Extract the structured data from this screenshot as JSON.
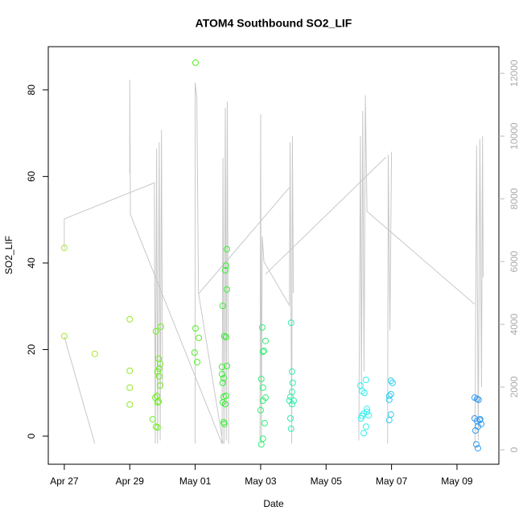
{
  "chart_data": {
    "type": "scatter",
    "title": "ATOM4 Southbound SO2_LIF",
    "xlabel": "Date",
    "ylabel": "SO2_LIF",
    "xlim": [
      -0.49,
      13.28
    ],
    "ylim": [
      -6.5,
      90
    ],
    "y2lim": [
      -460,
      12850
    ],
    "xticks": [
      {
        "value": 0,
        "label": "Apr 27"
      },
      {
        "value": 2,
        "label": "Apr 29"
      },
      {
        "value": 4,
        "label": "May 01"
      },
      {
        "value": 6,
        "label": "May 03"
      },
      {
        "value": 8,
        "label": "May 05"
      },
      {
        "value": 10,
        "label": "May 07"
      },
      {
        "value": 12,
        "label": "May 09"
      }
    ],
    "yticks": [
      0,
      20,
      40,
      60,
      80
    ],
    "y2ticks": [
      0,
      2000,
      4000,
      6000,
      8000,
      10000,
      12000
    ],
    "series": [
      {
        "type": "line",
        "axis": "y2",
        "color": "#c8c8c8",
        "x": [
          0,
          0.93,
          null,
          0,
          0,
          2.75,
          2.78,
          2.82,
          2.85,
          2.9,
          2.93,
          2.97,
          3.0,
          null,
          2.0,
          2.0,
          2.02,
          4.82,
          null,
          4.0,
          4.0,
          4.05,
          4.1,
          4.85,
          null,
          4.1,
          6.88,
          null,
          4.82,
          4.85,
          4.88,
          4.92,
          4.95,
          4.98,
          5.02,
          null,
          5.98,
          6.0,
          6.02,
          6.05,
          6.1,
          6.88,
          6.9,
          6.95,
          6.97,
          7.0,
          null,
          6.15,
          9.83,
          null,
          9.0,
          9.05,
          9.08,
          9.12,
          9.16,
          9.2,
          9.25,
          12.54,
          null,
          9.88,
          9.9,
          9.95,
          10.0,
          null,
          12.55,
          12.6,
          12.65,
          12.7,
          12.75,
          12.78,
          12.8
        ],
        "values": [
          3600,
          200,
          null,
          6380,
          7360,
          8510,
          200,
          9600,
          200,
          9800,
          300,
          10200,
          2000,
          null,
          8800,
          11800,
          7500,
          200,
          null,
          200,
          11700,
          11200,
          5000,
          200,
          null,
          4970,
          8360,
          null,
          200,
          9300,
          200,
          10900,
          300,
          11100,
          200,
          null,
          300,
          10700,
          200,
          6800,
          6000,
          4600,
          9800,
          200,
          10000,
          5000,
          null,
          5600,
          9330,
          null,
          300,
          10000,
          2000,
          10800,
          2500,
          11300,
          7600,
          4640,
          null,
          200,
          9400,
          3800,
          9500,
          null,
          200,
          9700,
          300,
          9900,
          2000,
          10000,
          5500
        ]
      },
      {
        "color": "#a8e830",
        "x": [
          0,
          0,
          0.93
        ],
        "values": [
          43.5,
          23.1,
          19.0
        ]
      },
      {
        "color": "#90ea28",
        "x": [
          2.0,
          2.0,
          2.0,
          2.0
        ],
        "values": [
          27.0,
          15.1,
          11.2,
          7.3
        ]
      },
      {
        "color": "#70ec22",
        "x": [
          2.7,
          2.8,
          2.85,
          2.8,
          2.83,
          2.78,
          2.85,
          2.9,
          2.85,
          2.9,
          2.93,
          2.95,
          2.88,
          2.93,
          2.88
        ],
        "values": [
          3.9,
          2.2,
          2.0,
          24.2,
          9.3,
          8.9,
          7.8,
          15.6,
          14.9,
          13.8,
          11.7,
          25.3,
          8.0,
          16.7,
          17.9
        ]
      },
      {
        "color": "#50ee22",
        "x": [
          4.01,
          4.01,
          3.98,
          4.06,
          4.11
        ],
        "values": [
          86.3,
          24.9,
          19.3,
          17.1,
          22.7
        ]
      },
      {
        "color": "#38ee30",
        "x": [
          4.84,
          4.92,
          4.94,
          4.97,
          4.97,
          4.89,
          4.94,
          4.82,
          4.82,
          4.87,
          4.84,
          4.97,
          4.87,
          4.94,
          4.84,
          4.92,
          4.87,
          4.89
        ],
        "values": [
          30.1,
          38.3,
          39.4,
          43.2,
          33.9,
          23.1,
          22.9,
          16.0,
          14.3,
          13.4,
          12.3,
          16.2,
          9.1,
          9.3,
          7.8,
          7.4,
          3.2,
          2.8
        ]
      },
      {
        "color": "#33ee77",
        "x": [
          6.05,
          6.07,
          6.15,
          6.02,
          6.07,
          6.15,
          6.0,
          6.07,
          6.12,
          6.07,
          6.02,
          6.1
        ],
        "values": [
          25.1,
          19.5,
          22.0,
          13.2,
          8.2,
          8.9,
          6.0,
          11.2,
          3.0,
          -0.6,
          -1.9,
          19.7
        ]
      },
      {
        "color": "#33eeaa",
        "x": [
          6.93,
          6.96,
          6.98,
          6.96,
          6.91,
          6.88,
          6.96,
          6.91,
          6.93,
          7.01
        ],
        "values": [
          26.2,
          14.9,
          12.3,
          10.2,
          9.1,
          8.2,
          7.4,
          4.1,
          1.7,
          8.2
        ]
      },
      {
        "color": "#33eeee",
        "x": [
          9.05,
          9.1,
          9.17,
          9.22,
          9.25,
          9.15,
          9.07,
          9.25,
          9.1,
          9.22,
          9.15,
          9.3
        ],
        "values": [
          11.7,
          10.4,
          10.0,
          13.0,
          6.3,
          5.2,
          4.1,
          5.6,
          4.7,
          2.2,
          0.7,
          4.8
        ]
      },
      {
        "color": "#33ccee",
        "x": [
          9.93,
          9.98,
          10.03,
          9.93,
          9.98,
          9.93,
          9.98
        ],
        "values": [
          9.3,
          12.8,
          12.3,
          8.4,
          5.0,
          3.7,
          9.7
        ]
      },
      {
        "color": "#3399ee",
        "x": [
          12.54,
          12.615,
          12.66,
          12.54,
          12.615,
          12.69,
          12.74,
          12.64,
          12.565,
          12.59,
          12.64,
          12.71
        ],
        "values": [
          8.9,
          8.6,
          8.4,
          4.1,
          3.5,
          3.7,
          2.8,
          2.2,
          1.3,
          -1.9,
          -2.8,
          3.9
        ]
      }
    ]
  }
}
